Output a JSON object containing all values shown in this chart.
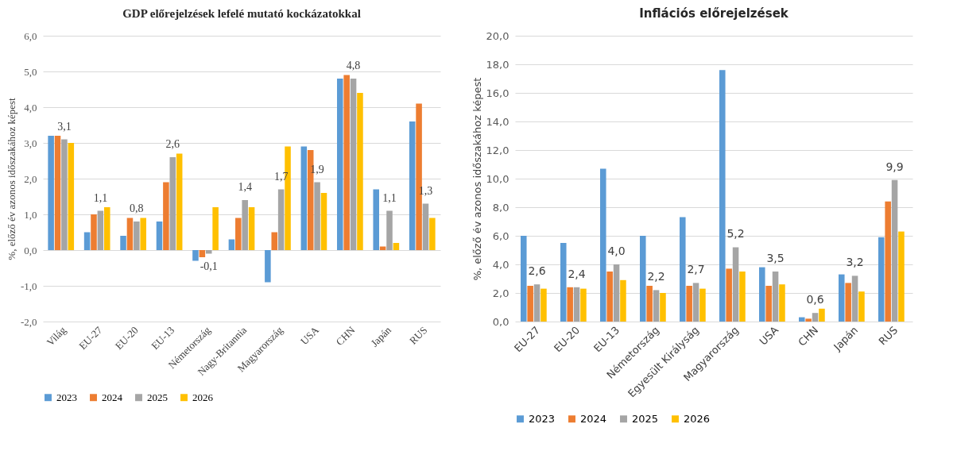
{
  "chart_data": [
    {
      "type": "bar",
      "title": "GDP előrejelzések lefelé mutató kockázatokkal",
      "ylabel": "%, előző év azonos időszakához képest",
      "categories": [
        "Világ",
        "EU-27",
        "EU-20",
        "EU-13",
        "Németország",
        "Nagy-Britannia",
        "Magyarország",
        "USA",
        "CHN",
        "Japán",
        "RUS"
      ],
      "series": [
        {
          "name": "2023",
          "color": "#5b9bd5",
          "values": [
            3.2,
            0.5,
            0.4,
            0.8,
            -0.3,
            0.3,
            -0.9,
            2.9,
            4.8,
            1.7,
            3.6
          ]
        },
        {
          "name": "2024",
          "color": "#ed7d31",
          "values": [
            3.2,
            1.0,
            0.9,
            1.9,
            -0.2,
            0.9,
            0.5,
            2.8,
            4.9,
            0.1,
            4.1
          ]
        },
        {
          "name": "2025",
          "color": "#a5a5a5",
          "values": [
            3.1,
            1.1,
            0.8,
            2.6,
            -0.1,
            1.4,
            1.7,
            1.9,
            4.8,
            1.1,
            1.3
          ],
          "value_labels": [
            "3,1",
            "1,1",
            "0,8",
            "2,6",
            "-0,1",
            "1,4",
            "1,7",
            "1,9",
            "4,8",
            "1,1",
            "1,3"
          ]
        },
        {
          "name": "2026",
          "color": "#ffc000",
          "values": [
            3.0,
            1.2,
            0.9,
            2.7,
            1.2,
            1.2,
            2.9,
            1.6,
            4.4,
            0.2,
            0.9
          ]
        }
      ],
      "ylim": [
        -2,
        6
      ],
      "yticks": [
        {
          "value": -2,
          "label": "-2,0"
        },
        {
          "value": -1,
          "label": "-1,0"
        },
        {
          "value": 0,
          "label": "0,0"
        },
        {
          "value": 1,
          "label": "1,0"
        },
        {
          "value": 2,
          "label": "2,0"
        },
        {
          "value": 3,
          "label": "3,0"
        },
        {
          "value": 4,
          "label": "4,0"
        },
        {
          "value": 5,
          "label": "5,0"
        },
        {
          "value": 6,
          "label": "6,0"
        }
      ],
      "grid": "y",
      "legend": "bottom"
    },
    {
      "type": "bar",
      "title": "Inflációs előrejelzések",
      "ylabel": "%, előző év azonos időszakához képest",
      "categories": [
        "EU-27",
        "EU-20",
        "EU-13",
        "Németország",
        "Egyesült Királyság",
        "Magyarország",
        "USA",
        "CHN",
        "Japán",
        "RUS"
      ],
      "series": [
        {
          "name": "2023",
          "color": "#5b9bd5",
          "values": [
            6.0,
            5.5,
            10.7,
            6.0,
            7.3,
            17.6,
            3.8,
            0.3,
            3.3,
            5.9
          ]
        },
        {
          "name": "2024",
          "color": "#ed7d31",
          "values": [
            2.5,
            2.4,
            3.5,
            2.5,
            2.5,
            3.7,
            2.5,
            0.2,
            2.7,
            8.4
          ]
        },
        {
          "name": "2025",
          "color": "#a5a5a5",
          "values": [
            2.6,
            2.4,
            4.0,
            2.2,
            2.7,
            5.2,
            3.5,
            0.6,
            3.2,
            9.9
          ],
          "value_labels": [
            "2,6",
            "2,4",
            "4,0",
            "2,2",
            "2,7",
            "5,2",
            "3,5",
            "0,6",
            "3,2",
            "9,9"
          ]
        },
        {
          "name": "2026",
          "color": "#ffc000",
          "values": [
            2.3,
            2.3,
            2.9,
            2.0,
            2.3,
            3.5,
            2.6,
            0.9,
            2.1,
            6.3
          ]
        }
      ],
      "ylim": [
        0,
        20
      ],
      "yticks": [
        {
          "value": 0,
          "label": "0,0"
        },
        {
          "value": 2,
          "label": "2,0"
        },
        {
          "value": 4,
          "label": "4,0"
        },
        {
          "value": 6,
          "label": "6,0"
        },
        {
          "value": 8,
          "label": "8,0"
        },
        {
          "value": 10,
          "label": "10,0"
        },
        {
          "value": 12,
          "label": "12,0"
        },
        {
          "value": 14,
          "label": "14,0"
        },
        {
          "value": 16,
          "label": "16,0"
        },
        {
          "value": 18,
          "label": "18,0"
        },
        {
          "value": 20,
          "label": "20,0"
        }
      ],
      "grid": "y",
      "legend": "bottom"
    }
  ]
}
